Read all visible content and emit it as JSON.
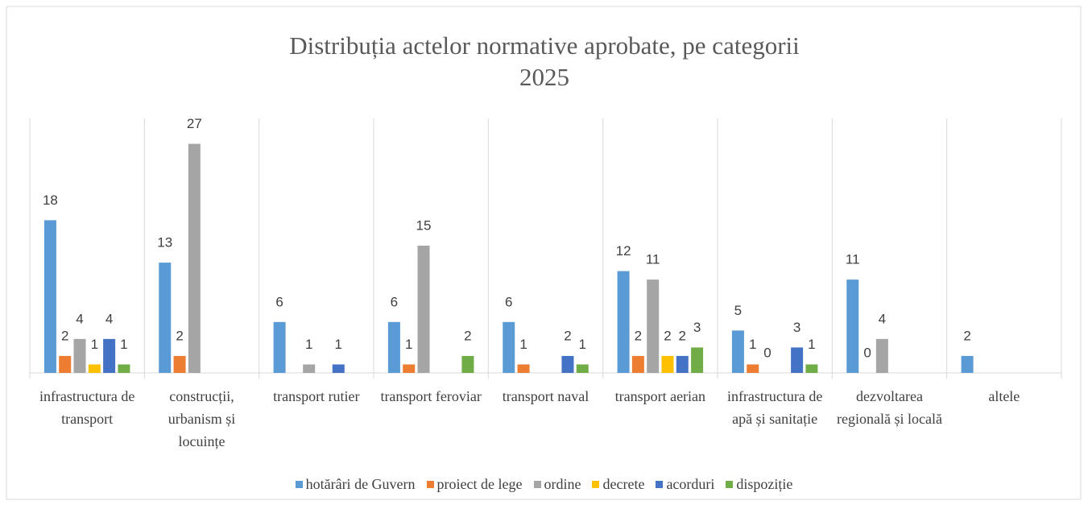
{
  "chart_data": {
    "type": "bar",
    "title": "Distribuția actelor normative aprobate, pe categorii",
    "subtitle": "2025",
    "categories": [
      "infrastructura de transport",
      "construcții, urbanism și locuințe",
      "transport rutier",
      "transport feroviar",
      "transport naval",
      "transport aerian",
      "infrastructura de apă și sanitație",
      "dezvoltarea regională și locală",
      "altele"
    ],
    "series": [
      {
        "name": "hotărâri de Guvern",
        "color": "#5b9bd5",
        "values": [
          18,
          13,
          6,
          6,
          6,
          12,
          5,
          11,
          2
        ]
      },
      {
        "name": "proiect de lege",
        "color": "#ed7d31",
        "values": [
          2,
          2,
          null,
          1,
          1,
          2,
          1,
          0,
          null
        ]
      },
      {
        "name": "ordine",
        "color": "#a5a5a5",
        "values": [
          4,
          27,
          1,
          15,
          null,
          11,
          0,
          4,
          null
        ]
      },
      {
        "name": "decrete",
        "color": "#ffc000",
        "values": [
          1,
          null,
          null,
          null,
          null,
          2,
          null,
          null,
          null
        ]
      },
      {
        "name": "acorduri",
        "color": "#4472c4",
        "values": [
          4,
          null,
          1,
          null,
          2,
          2,
          3,
          null,
          null
        ]
      },
      {
        "name": "dispoziție",
        "color": "#70ad47",
        "values": [
          1,
          null,
          null,
          2,
          1,
          3,
          1,
          null,
          null
        ]
      }
    ],
    "ylim": [
      0,
      30
    ],
    "legend": "bottom"
  }
}
